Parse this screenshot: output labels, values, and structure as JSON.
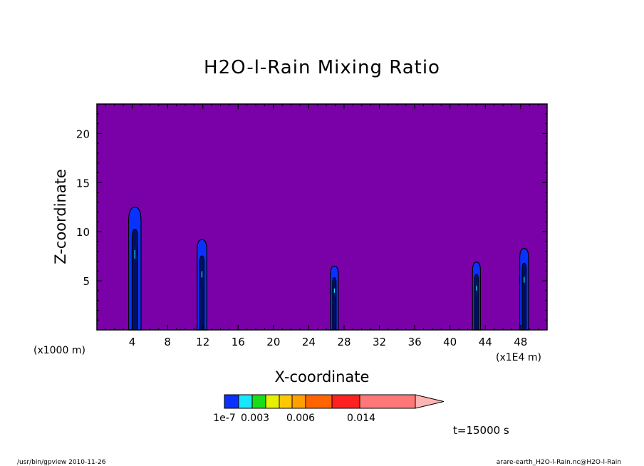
{
  "chart_data": {
    "type": "heatmap",
    "title": "H2O-l-Rain Mixing Ratio",
    "xlabel": "X-coordinate",
    "ylabel": "Z-coordinate",
    "x_unit_left": "(x1000 m)",
    "x_unit_right": "(x1E4 m)",
    "xlim": [
      0,
      51
    ],
    "ylim": [
      0,
      23
    ],
    "x_ticks": [
      4,
      8,
      12,
      16,
      20,
      24,
      28,
      32,
      36,
      40,
      44,
      48
    ],
    "x_tick_labels": [
      "4",
      "8",
      "12",
      "16",
      "20",
      "24",
      "28",
      "32",
      "36",
      "40",
      "44",
      "48"
    ],
    "y_ticks": [
      5,
      10,
      15,
      20
    ],
    "y_tick_labels": [
      "5",
      "10",
      "15",
      "20"
    ],
    "background_color": "#7a00a8",
    "features": [
      {
        "x": 4.3,
        "half_width": 0.7,
        "top": 12.5
      },
      {
        "x": 11.9,
        "half_width": 0.55,
        "top": 9.2
      },
      {
        "x": 26.9,
        "half_width": 0.45,
        "top": 6.5
      },
      {
        "x": 43.0,
        "half_width": 0.45,
        "top": 6.9
      },
      {
        "x": 48.4,
        "half_width": 0.5,
        "top": 8.3
      }
    ],
    "colorbar": {
      "colors": [
        "#0a32ff",
        "#19e6ff",
        "#1adc1a",
        "#e6f000",
        "#ffc800",
        "#ffa000",
        "#ff6400",
        "#ff2020",
        "#ff7878"
      ],
      "extend_color": "#ffb4b4",
      "labels": [
        "1e-7",
        "0.003",
        "0.006",
        "0.014"
      ]
    },
    "time_label": "t=15000 s"
  },
  "footer": {
    "left": "/usr/bin/gpview   2010-11-26",
    "right": "arare-earth_H2O-l-Rain.nc@H2O-l-Rain"
  }
}
